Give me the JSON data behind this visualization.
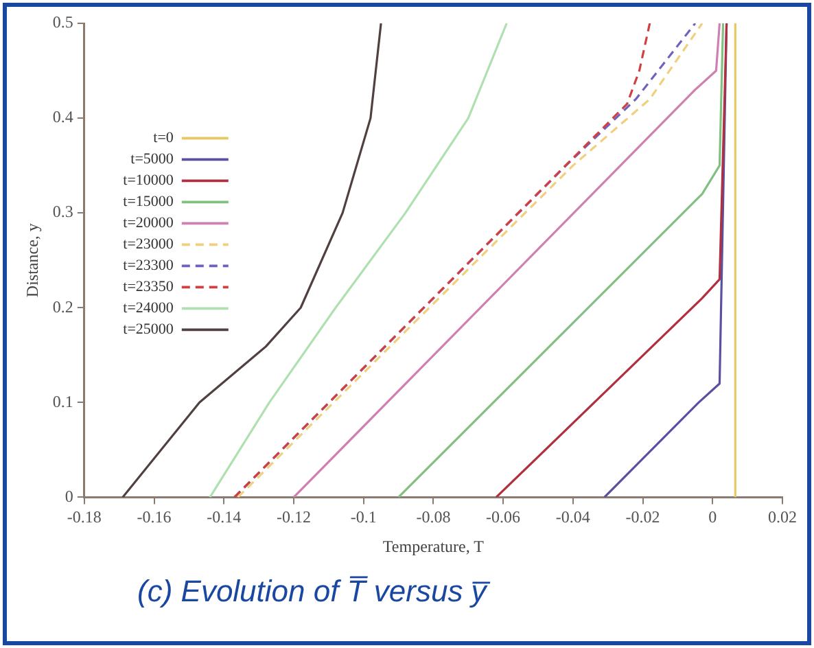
{
  "chart_data": {
    "type": "line",
    "xlabel": "Temperature, T",
    "ylabel": "Distance, y",
    "xlim": [
      -0.18,
      0.02
    ],
    "xticks": [
      -0.18,
      -0.16,
      -0.14,
      -0.12,
      -0.1,
      -0.08,
      -0.06,
      -0.04,
      -0.02,
      0,
      0.02
    ],
    "ylim": [
      0,
      0.5
    ],
    "yticks": [
      0,
      0.1,
      0.2,
      0.3,
      0.4,
      0.5
    ],
    "grid": false,
    "legend": "left",
    "marker": "none",
    "annotations": [
      "(c) Evolution of T̅ versus y̅"
    ],
    "series": [
      {
        "name": "t=0",
        "color": "#e8c860",
        "x": [
          0.0065,
          0.0065
        ],
        "values": [
          0,
          0.5
        ]
      },
      {
        "name": "t=5000",
        "color": "#5a50a0",
        "x": [
          -0.031,
          -0.004,
          0.002,
          0.004
        ],
        "values": [
          0,
          0.1,
          0.12,
          0.5
        ]
      },
      {
        "name": "t=10000",
        "color": "#b03040",
        "x": [
          -0.062,
          -0.003,
          0.002,
          0.004
        ],
        "values": [
          0,
          0.21,
          0.23,
          0.5
        ]
      },
      {
        "name": "t=15000",
        "color": "#80c080",
        "x": [
          -0.09,
          -0.003,
          0.002,
          0.003
        ],
        "values": [
          0,
          0.32,
          0.35,
          0.5
        ]
      },
      {
        "name": "t=20000",
        "color": "#d080b0",
        "x": [
          -0.12,
          -0.005,
          0.001,
          0.002
        ],
        "values": [
          0,
          0.43,
          0.45,
          0.5
        ]
      },
      {
        "name": "t=23000",
        "color": "#f0d080",
        "line_style": "dashed",
        "x": [
          -0.136,
          -0.04,
          -0.018,
          -0.003
        ],
        "values": [
          0,
          0.35,
          0.42,
          0.5
        ]
      },
      {
        "name": "t=23300",
        "color": "#7060c0",
        "line_style": "dashed",
        "x": [
          -0.137,
          -0.042,
          -0.022,
          -0.005
        ],
        "values": [
          0,
          0.35,
          0.42,
          0.5
        ]
      },
      {
        "name": "t=23350",
        "color": "#d04040",
        "line_style": "dashed",
        "x": [
          -0.137,
          -0.0245,
          -0.021,
          -0.018
        ],
        "values": [
          0,
          0.415,
          0.45,
          0.5
        ]
      },
      {
        "name": "t=24000",
        "color": "#b0e0b0",
        "x": [
          -0.144,
          -0.127,
          -0.108,
          -0.088,
          -0.07,
          -0.059
        ],
        "values": [
          0,
          0.1,
          0.2,
          0.3,
          0.4,
          0.5
        ]
      },
      {
        "name": "t=25000",
        "color": "#504040",
        "x": [
          -0.169,
          -0.147,
          -0.128,
          -0.118,
          -0.106,
          -0.098,
          -0.095
        ],
        "values": [
          0,
          0.1,
          0.159,
          0.2,
          0.3,
          0.4,
          0.5
        ]
      }
    ]
  }
}
